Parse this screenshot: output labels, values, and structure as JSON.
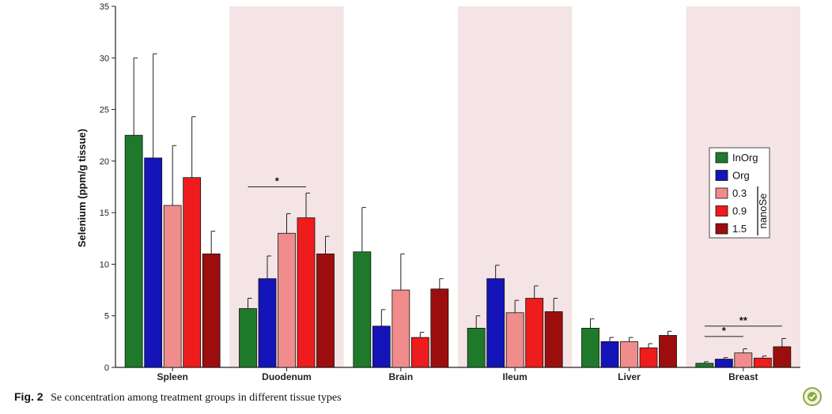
{
  "chart_data": {
    "type": "bar",
    "ylabel": "Selenium (ppm/g tissue)",
    "ylim": [
      0,
      35
    ],
    "yticks": [
      0,
      5,
      10,
      15,
      20,
      25,
      30,
      35
    ],
    "categories": [
      "Spleen",
      "Duodenum",
      "Brain",
      "Ileum",
      "Liver",
      "Breast"
    ],
    "shaded_categories": [
      "Duodenum",
      "Ileum",
      "Breast"
    ],
    "series": [
      {
        "name": "InOrg",
        "color": "#1e7a2a",
        "values": [
          22.5,
          5.7,
          11.2,
          3.8,
          3.8,
          0.4
        ],
        "errors": [
          7.5,
          1.0,
          4.3,
          1.2,
          0.9,
          0.15
        ]
      },
      {
        "name": "Org",
        "color": "#1414b8",
        "values": [
          20.3,
          8.6,
          4.0,
          8.6,
          2.5,
          0.8
        ],
        "errors": [
          10.1,
          2.2,
          1.6,
          1.3,
          0.4,
          0.15
        ]
      },
      {
        "name": "0.3",
        "color": "#f08c8c",
        "values": [
          15.7,
          13.0,
          7.5,
          5.3,
          2.5,
          1.4
        ],
        "errors": [
          5.8,
          1.9,
          3.5,
          1.2,
          0.4,
          0.4
        ]
      },
      {
        "name": "0.9",
        "color": "#ee1c1c",
        "values": [
          18.4,
          14.5,
          2.9,
          6.7,
          1.9,
          0.9
        ],
        "errors": [
          5.9,
          2.4,
          0.5,
          1.2,
          0.4,
          0.2
        ]
      },
      {
        "name": "1.5",
        "color": "#9c0e0e",
        "values": [
          11.0,
          11.0,
          7.6,
          5.4,
          3.1,
          2.0
        ],
        "errors": [
          2.2,
          1.7,
          1.0,
          1.3,
          0.4,
          0.8
        ]
      }
    ],
    "legend": {
      "placement": "right",
      "group_label": "nanoSe",
      "grouped_series": [
        "0.3",
        "0.9",
        "1.5"
      ]
    },
    "annotations": [
      {
        "category": "Duodenum",
        "from_series": 0,
        "to_series": 3,
        "y": 17.5,
        "label": "*"
      },
      {
        "category": "Breast",
        "from_series": 0,
        "to_series": 2,
        "y": 3.0,
        "label": "*"
      },
      {
        "category": "Breast",
        "from_series": 0,
        "to_series": 4,
        "y": 4.0,
        "label": "**"
      }
    ]
  },
  "caption": {
    "label": "Fig. 2",
    "text": "Se concentration among treatment groups in different tissue types"
  },
  "badge": {
    "icon": "crossmark-icon"
  }
}
